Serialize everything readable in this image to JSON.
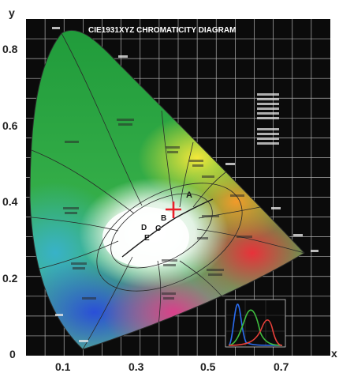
{
  "diagram": {
    "title": "CIE1931XYZ CHROMATICITY DIAGRAM",
    "x_axis_letter": "x",
    "y_axis_letter": "y",
    "x_ticks": [
      "0.1",
      "0.3",
      "0.5",
      "0.7"
    ],
    "y_ticks": [
      "0",
      "0.2",
      "0.4",
      "0.6",
      "0.8"
    ],
    "planckian_labels": [
      "A",
      "B",
      "C",
      "D",
      "E"
    ],
    "colors": {
      "background": "#0b0b0b",
      "grid": "#cfcfcf",
      "white_point_marker": "#e8202a",
      "inset_blue": "#2a6cf0",
      "inset_green": "#3fbf3f",
      "inset_red": "#e8403a"
    }
  }
}
